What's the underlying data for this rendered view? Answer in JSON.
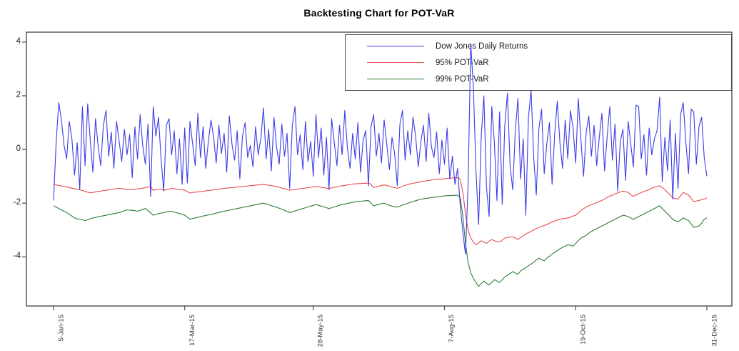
{
  "chart_data": {
    "type": "line",
    "title": "Backtesting Chart for POT-VaR",
    "xlabel": "",
    "ylabel": "",
    "ylim": [
      -5.83,
      4.37
    ],
    "grid": false,
    "legend_position": "top-right-inside-box",
    "y_ticks": [
      {
        "label": "4",
        "value": 4
      },
      {
        "label": "2",
        "value": 2
      },
      {
        "label": "0",
        "value": 0
      },
      {
        "label": "-2",
        "value": -2
      },
      {
        "label": "-4",
        "value": -4
      }
    ],
    "x_ticks": [
      {
        "label": "5-Jan-15",
        "index": 0
      },
      {
        "label": "17-Mar-15",
        "index": 50
      },
      {
        "label": "28-May-15",
        "index": 99
      },
      {
        "label": "7-Aug-15",
        "index": 149
      },
      {
        "label": "19-Oct-15",
        "index": 199
      },
      {
        "label": "31-Dec-15",
        "index": 249
      }
    ],
    "series": [
      {
        "name": "Dow Jones Daily Returns",
        "color": "#3c3ce8",
        "values": [
          -1.9,
          0.3,
          1.75,
          1.1,
          0.15,
          -0.35,
          1.05,
          0.4,
          -0.95,
          0.25,
          -1.5,
          1.6,
          -0.6,
          1.7,
          0.35,
          -0.85,
          1.15,
          0.1,
          -0.6,
          0.9,
          1.45,
          -0.25,
          0.65,
          -0.7,
          1.05,
          0.3,
          -0.45,
          0.75,
          -0.2,
          0.55,
          -1.05,
          0.85,
          -0.35,
          1.3,
          0.15,
          -0.55,
          0.95,
          -1.75,
          1.6,
          0.5,
          1.2,
          -0.4,
          -1.55,
          0.9,
          1.15,
          -0.2,
          0.7,
          -0.9,
          0.4,
          -1.3,
          0.8,
          -1.25,
          1.05,
          0.2,
          -0.6,
          1.35,
          -0.3,
          0.85,
          -0.7,
          0.3,
          1.1,
          0.45,
          -0.5,
          0.9,
          -0.15,
          0.6,
          -0.85,
          1.25,
          0.2,
          -0.4,
          0.7,
          -1.1,
          0.5,
          1.0,
          -0.3,
          0.15,
          -0.65,
          0.85,
          -0.2,
          0.4,
          1.55,
          -0.35,
          0.75,
          -0.8,
          1.2,
          0.1,
          -0.55,
          0.95,
          -0.25,
          0.6,
          -1.45,
          0.9,
          1.6,
          -0.2,
          0.55,
          -0.75,
          1.05,
          -0.45,
          0.3,
          -1.0,
          1.3,
          -0.3,
          0.8,
          -0.95,
          0.45,
          -1.5,
          1.15,
          0.25,
          -0.6,
          0.9,
          -0.2,
          1.45,
          0.05,
          -0.7,
          0.6,
          -0.35,
          1.0,
          -0.85,
          0.35,
          0.7,
          -1.35,
          0.85,
          1.3,
          -0.25,
          0.6,
          -0.5,
          1.1,
          0.2,
          -0.75,
          0.45,
          -0.15,
          -1.35,
          0.95,
          1.45,
          -0.4,
          0.7,
          -0.2,
          1.2,
          0.5,
          -0.65,
          0.3,
          0.9,
          -0.45,
          1.35,
          0.1,
          -0.3,
          0.65,
          -0.9,
          0.35,
          -0.55,
          0.8,
          -1.1,
          -0.25,
          -1.3,
          -0.7,
          -2.1,
          -3.1,
          -3.9,
          -1.3,
          3.95,
          2.3,
          -0.8,
          -2.8,
          0.5,
          2.0,
          -1.4,
          -2.5,
          1.6,
          0.3,
          -1.9,
          1.4,
          -2.05,
          0.9,
          2.1,
          -0.6,
          -1.5,
          0.7,
          1.9,
          -1.1,
          0.4,
          -2.45,
          1.2,
          2.2,
          -0.3,
          -1.7,
          0.8,
          1.5,
          -0.9,
          0.2,
          1.0,
          -1.3,
          0.6,
          1.8,
          0.25,
          -0.7,
          1.1,
          -0.35,
          1.45,
          0.8,
          -0.5,
          1.9,
          0.35,
          -1.0,
          0.65,
          1.25,
          -0.25,
          0.9,
          -0.6,
          0.45,
          1.35,
          -0.8,
          0.5,
          1.6,
          -0.4,
          0.95,
          -1.55,
          0.3,
          0.75,
          -1.15,
          1.05,
          0.2,
          -0.65,
          1.65,
          1.6,
          -0.35,
          0.55,
          -0.95,
          0.8,
          -0.2,
          0.4,
          0.7,
          1.95,
          -1.2,
          0.45,
          -0.8,
          1.1,
          -1.85,
          0.6,
          -1.45,
          1.3,
          1.75,
          0.25,
          -0.9,
          1.5,
          1.4,
          -0.55,
          0.85,
          1.2,
          -0.3,
          -1.0
        ]
      },
      {
        "name": "95% POT-VaR",
        "color": "#e84c4c",
        "values": [
          -1.3,
          -1.32,
          -1.34,
          -1.36,
          -1.38,
          -1.4,
          -1.42,
          -1.44,
          -1.46,
          -1.48,
          -1.5,
          -1.53,
          -1.56,
          -1.59,
          -1.62,
          -1.6,
          -1.58,
          -1.56,
          -1.55,
          -1.53,
          -1.52,
          -1.5,
          -1.49,
          -1.47,
          -1.46,
          -1.45,
          -1.46,
          -1.47,
          -1.48,
          -1.49,
          -1.5,
          -1.48,
          -1.47,
          -1.45,
          -1.44,
          -1.42,
          -1.4,
          -1.38,
          -1.52,
          -1.5,
          -1.49,
          -1.47,
          -1.52,
          -1.5,
          -1.48,
          -1.45,
          -1.46,
          -1.48,
          -1.49,
          -1.5,
          -1.52,
          -1.57,
          -1.62,
          -1.6,
          -1.59,
          -1.58,
          -1.57,
          -1.56,
          -1.54,
          -1.53,
          -1.52,
          -1.5,
          -1.49,
          -1.48,
          -1.46,
          -1.45,
          -1.44,
          -1.43,
          -1.42,
          -1.41,
          -1.4,
          -1.39,
          -1.38,
          -1.37,
          -1.36,
          -1.35,
          -1.34,
          -1.33,
          -1.32,
          -1.31,
          -1.3,
          -1.32,
          -1.33,
          -1.35,
          -1.36,
          -1.38,
          -1.41,
          -1.44,
          -1.46,
          -1.49,
          -1.52,
          -1.5,
          -1.49,
          -1.48,
          -1.46,
          -1.45,
          -1.44,
          -1.42,
          -1.41,
          -1.39,
          -1.38,
          -1.39,
          -1.41,
          -1.42,
          -1.44,
          -1.45,
          -1.43,
          -1.41,
          -1.39,
          -1.37,
          -1.35,
          -1.34,
          -1.32,
          -1.31,
          -1.29,
          -1.28,
          -1.27,
          -1.27,
          -1.26,
          -1.26,
          -1.25,
          -1.3,
          -1.42,
          -1.39,
          -1.37,
          -1.34,
          -1.32,
          -1.34,
          -1.37,
          -1.4,
          -1.42,
          -1.45,
          -1.41,
          -1.37,
          -1.34,
          -1.3,
          -1.28,
          -1.26,
          -1.24,
          -1.22,
          -1.2,
          -1.18,
          -1.17,
          -1.15,
          -1.14,
          -1.12,
          -1.11,
          -1.1,
          -1.1,
          -1.09,
          -1.08,
          -1.07,
          -1.06,
          -1.06,
          -1.05,
          -1.1,
          -1.6,
          -2.4,
          -3.0,
          -3.3,
          -3.45,
          -3.55,
          -3.48,
          -3.4,
          -3.45,
          -3.5,
          -3.42,
          -3.35,
          -3.4,
          -3.43,
          -3.45,
          -3.38,
          -3.3,
          -3.28,
          -3.26,
          -3.25,
          -3.3,
          -3.35,
          -3.28,
          -3.22,
          -3.15,
          -3.1,
          -3.05,
          -3.0,
          -2.95,
          -2.9,
          -2.87,
          -2.83,
          -2.8,
          -2.75,
          -2.7,
          -2.67,
          -2.63,
          -2.6,
          -2.58,
          -2.57,
          -2.55,
          -2.52,
          -2.48,
          -2.45,
          -2.37,
          -2.28,
          -2.2,
          -2.15,
          -2.1,
          -2.05,
          -2.02,
          -1.98,
          -1.95,
          -1.9,
          -1.85,
          -1.78,
          -1.74,
          -1.7,
          -1.66,
          -1.62,
          -1.58,
          -1.55,
          -1.57,
          -1.6,
          -1.68,
          -1.75,
          -1.7,
          -1.65,
          -1.6,
          -1.57,
          -1.53,
          -1.5,
          -1.44,
          -1.41,
          -1.38,
          -1.35,
          -1.42,
          -1.5,
          -1.6,
          -1.7,
          -1.8,
          -1.83,
          -1.85,
          -1.72,
          -1.6,
          -1.65,
          -1.7,
          -1.82,
          -1.95,
          -1.92,
          -1.9,
          -1.87,
          -1.85,
          -1.8
        ]
      },
      {
        "name": "99% POT-VaR",
        "color": "#2e7d32",
        "values": [
          -2.1,
          -2.15,
          -2.2,
          -2.25,
          -2.3,
          -2.35,
          -2.42,
          -2.48,
          -2.55,
          -2.58,
          -2.6,
          -2.62,
          -2.65,
          -2.62,
          -2.58,
          -2.55,
          -2.53,
          -2.51,
          -2.49,
          -2.47,
          -2.45,
          -2.43,
          -2.41,
          -2.39,
          -2.37,
          -2.35,
          -2.32,
          -2.28,
          -2.25,
          -2.26,
          -2.27,
          -2.28,
          -2.3,
          -2.27,
          -2.23,
          -2.2,
          -2.28,
          -2.36,
          -2.45,
          -2.42,
          -2.39,
          -2.37,
          -2.35,
          -2.33,
          -2.31,
          -2.3,
          -2.33,
          -2.36,
          -2.39,
          -2.42,
          -2.45,
          -2.52,
          -2.6,
          -2.57,
          -2.55,
          -2.53,
          -2.5,
          -2.48,
          -2.46,
          -2.44,
          -2.42,
          -2.4,
          -2.37,
          -2.35,
          -2.32,
          -2.3,
          -2.28,
          -2.26,
          -2.24,
          -2.22,
          -2.2,
          -2.18,
          -2.16,
          -2.14,
          -2.12,
          -2.1,
          -2.08,
          -2.06,
          -2.04,
          -2.02,
          -2.0,
          -2.03,
          -2.06,
          -2.09,
          -2.12,
          -2.15,
          -2.19,
          -2.23,
          -2.27,
          -2.31,
          -2.35,
          -2.32,
          -2.29,
          -2.26,
          -2.23,
          -2.2,
          -2.17,
          -2.14,
          -2.11,
          -2.08,
          -2.05,
          -2.08,
          -2.11,
          -2.14,
          -2.17,
          -2.2,
          -2.17,
          -2.14,
          -2.11,
          -2.08,
          -2.05,
          -2.03,
          -2.01,
          -1.99,
          -1.97,
          -1.95,
          -1.94,
          -1.93,
          -1.92,
          -1.91,
          -1.9,
          -2.0,
          -2.1,
          -2.07,
          -2.05,
          -2.02,
          -2.0,
          -2.04,
          -2.08,
          -2.11,
          -2.13,
          -2.15,
          -2.11,
          -2.07,
          -2.04,
          -2.0,
          -1.97,
          -1.94,
          -1.91,
          -1.88,
          -1.85,
          -1.84,
          -1.82,
          -1.81,
          -1.79,
          -1.78,
          -1.77,
          -1.76,
          -1.74,
          -1.73,
          -1.72,
          -1.72,
          -1.71,
          -1.71,
          -1.7,
          -1.8,
          -2.5,
          -3.5,
          -4.2,
          -4.6,
          -4.8,
          -4.95,
          -5.1,
          -5.0,
          -4.9,
          -4.98,
          -5.05,
          -4.95,
          -4.85,
          -4.9,
          -4.95,
          -4.85,
          -4.75,
          -4.68,
          -4.62,
          -4.55,
          -4.6,
          -4.65,
          -4.52,
          -4.46,
          -4.4,
          -4.33,
          -4.27,
          -4.2,
          -4.12,
          -4.05,
          -4.1,
          -4.15,
          -4.05,
          -3.98,
          -3.9,
          -3.83,
          -3.77,
          -3.7,
          -3.65,
          -3.6,
          -3.55,
          -3.57,
          -3.6,
          -3.5,
          -3.4,
          -3.3,
          -3.25,
          -3.2,
          -3.12,
          -3.05,
          -3.0,
          -2.95,
          -2.9,
          -2.85,
          -2.8,
          -2.75,
          -2.7,
          -2.65,
          -2.6,
          -2.55,
          -2.5,
          -2.45,
          -2.47,
          -2.5,
          -2.55,
          -2.6,
          -2.55,
          -2.5,
          -2.45,
          -2.4,
          -2.35,
          -2.3,
          -2.25,
          -2.2,
          -2.15,
          -2.1,
          -2.2,
          -2.3,
          -2.4,
          -2.5,
          -2.6,
          -2.65,
          -2.7,
          -2.62,
          -2.55,
          -2.6,
          -2.65,
          -2.77,
          -2.9,
          -2.87,
          -2.85,
          -2.75,
          -2.6,
          -2.55
        ]
      }
    ]
  }
}
